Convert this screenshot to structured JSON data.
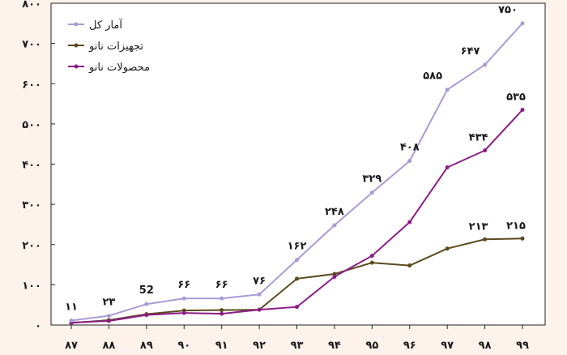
{
  "chart_data": {
    "type": "line",
    "title": "",
    "xlabel": "",
    "ylabel": "",
    "categories": [
      "۸۷",
      "۸۸",
      "۸۹",
      "۹۰",
      "۹۱",
      "۹۲",
      "۹۳",
      "۹۴",
      "۹۵",
      "۹۶",
      "۹۷",
      "۹۸",
      "۹۹"
    ],
    "ylim": [
      0,
      800
    ],
    "yticks": [
      0,
      100,
      200,
      300,
      400,
      500,
      600,
      700,
      800
    ],
    "ytick_labels": [
      "۰",
      "۱۰۰",
      "۲۰۰",
      "۳۰۰",
      "۴۰۰",
      "۵۰۰",
      "۶۰۰",
      "۷۰۰",
      "۸۰۰"
    ],
    "grid": false,
    "legend_position": "top-left",
    "series": [
      {
        "name": "آمار کل",
        "color": "#a99bd6",
        "values": [
          11,
          23,
          52,
          66,
          66,
          76,
          162,
          248,
          329,
          408,
          585,
          647,
          750
        ],
        "labels": [
          "۱۱",
          "۲۳",
          "52",
          "۶۶",
          "۶۶",
          "۷۶",
          "۱۶۲",
          "۲۴۸",
          "۳۲۹",
          "۴۰۸",
          "۵۸۵",
          "۶۴۷",
          "۷۵۰"
        ]
      },
      {
        "name": "تجهیزات نانو",
        "color": "#5c4a1e",
        "values": [
          5,
          12,
          27,
          36,
          37,
          38,
          115,
          127,
          155,
          148,
          190,
          213,
          215
        ],
        "labels": [
          "",
          "",
          "",
          "",
          "",
          "",
          "",
          "",
          "",
          "",
          "",
          "۲۱۳",
          "۲۱۵"
        ]
      },
      {
        "name": "محصولات نانو",
        "color": "#8b1d86",
        "values": [
          6,
          10,
          25,
          30,
          28,
          38,
          45,
          120,
          172,
          256,
          392,
          434,
          535
        ],
        "labels": [
          "",
          "",
          "",
          "",
          "",
          "",
          "",
          "",
          "",
          "",
          "",
          "۴۳۴",
          "۵۳۵"
        ]
      }
    ]
  }
}
